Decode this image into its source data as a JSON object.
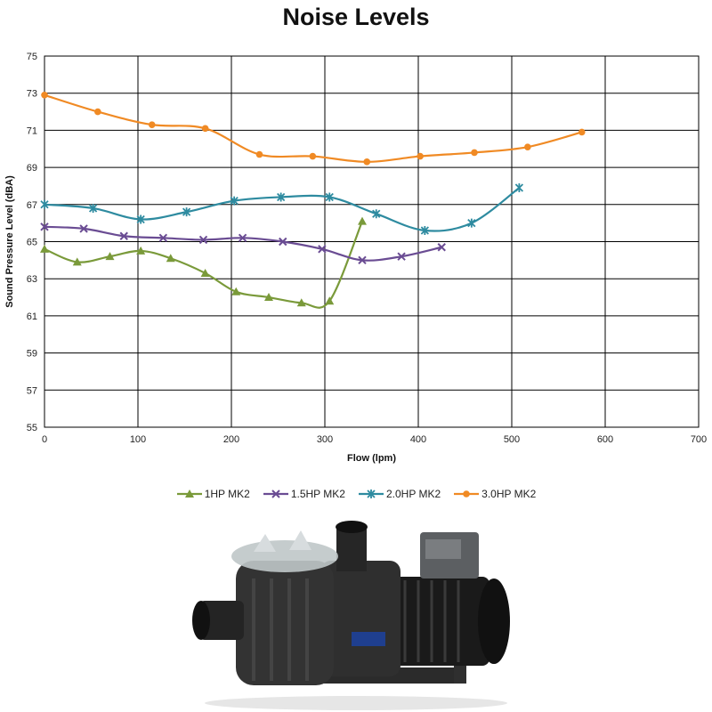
{
  "chart_data": {
    "type": "line",
    "title": "Noise Levels",
    "xlabel": "Flow (lpm)",
    "ylabel": "Sound Pressure Level (dBA)",
    "xlim": [
      0,
      700
    ],
    "ylim": [
      55,
      75
    ],
    "x_ticks": [
      0,
      100,
      200,
      300,
      400,
      500,
      600,
      700
    ],
    "y_ticks": [
      55,
      57,
      59,
      61,
      63,
      65,
      67,
      69,
      71,
      73,
      75
    ],
    "grid": true,
    "legend_position": "bottom",
    "series": [
      {
        "name": "1HP MK2",
        "color": "#7a9a3a",
        "marker": "triangle",
        "x": [
          0,
          35,
          70,
          103,
          135,
          172,
          205,
          240,
          275,
          305,
          340
        ],
        "y": [
          64.6,
          63.9,
          64.2,
          64.5,
          64.1,
          63.3,
          62.3,
          62.0,
          61.7,
          61.8,
          66.1
        ]
      },
      {
        "name": "1.5HP MK2",
        "color": "#6a4c93",
        "marker": "x",
        "x": [
          0,
          42,
          85,
          127,
          170,
          212,
          255,
          297,
          340,
          382,
          425
        ],
        "y": [
          65.8,
          65.7,
          65.3,
          65.2,
          65.1,
          65.2,
          65.0,
          64.6,
          64.0,
          64.2,
          64.7
        ]
      },
      {
        "name": "2.0HP MK2",
        "color": "#2e8ba0",
        "marker": "asterisk",
        "x": [
          0,
          52,
          103,
          152,
          203,
          253,
          305,
          355,
          407,
          457,
          508
        ],
        "y": [
          67.0,
          66.8,
          66.2,
          66.6,
          67.2,
          67.4,
          67.4,
          66.5,
          65.6,
          66.0,
          67.9
        ]
      },
      {
        "name": "3.0HP MK2",
        "color": "#f08a24",
        "marker": "circle",
        "x": [
          0,
          57,
          115,
          172,
          230,
          287,
          345,
          402,
          460,
          517,
          575
        ],
        "y": [
          72.9,
          72.0,
          71.3,
          71.1,
          69.7,
          69.6,
          69.3,
          69.6,
          69.8,
          70.1,
          70.9
        ]
      }
    ]
  },
  "pump_image": {
    "description_icon": "pool-pump-photo-icon",
    "colors": {
      "body": "#2b2b2b",
      "motor": "#1a1a1a",
      "lid": "#bfc6c8",
      "badge": "#1f3f8f"
    }
  }
}
